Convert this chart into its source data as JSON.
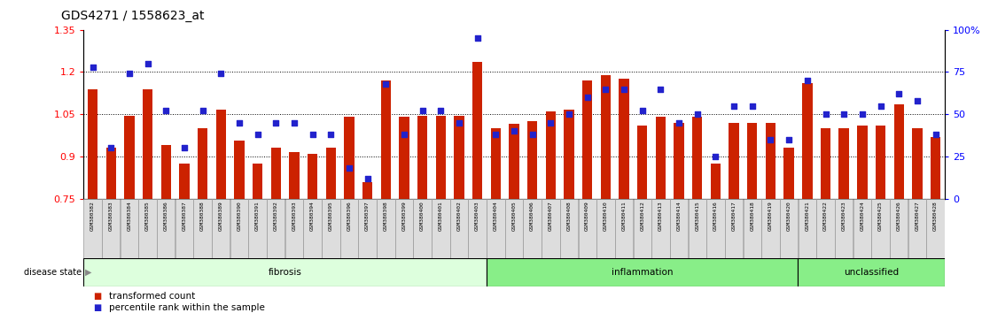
{
  "title": "GDS4271 / 1558623_at",
  "samples": [
    "GSM380382",
    "GSM380383",
    "GSM380384",
    "GSM380385",
    "GSM380386",
    "GSM380387",
    "GSM380388",
    "GSM380389",
    "GSM380390",
    "GSM380391",
    "GSM380392",
    "GSM380393",
    "GSM380394",
    "GSM380395",
    "GSM380396",
    "GSM380397",
    "GSM380398",
    "GSM380399",
    "GSM380400",
    "GSM380401",
    "GSM380402",
    "GSM380403",
    "GSM380404",
    "GSM380405",
    "GSM380406",
    "GSM380407",
    "GSM380408",
    "GSM380409",
    "GSM380410",
    "GSM380411",
    "GSM380412",
    "GSM380413",
    "GSM380414",
    "GSM380415",
    "GSM380416",
    "GSM380417",
    "GSM380418",
    "GSM380419",
    "GSM380420",
    "GSM380421",
    "GSM380422",
    "GSM380423",
    "GSM380424",
    "GSM380425",
    "GSM380426",
    "GSM380427",
    "GSM380428"
  ],
  "bar_values": [
    1.14,
    0.93,
    1.045,
    1.14,
    0.94,
    0.875,
    1.0,
    1.065,
    0.955,
    0.875,
    0.93,
    0.915,
    0.91,
    0.93,
    1.04,
    0.81,
    1.17,
    1.04,
    1.045,
    1.045,
    1.045,
    1.235,
    1.0,
    1.015,
    1.025,
    1.06,
    1.065,
    1.17,
    1.19,
    1.175,
    1.01,
    1.04,
    1.02,
    1.04,
    0.875,
    1.02,
    1.02,
    1.02,
    0.93,
    1.16,
    1.0,
    1.0,
    1.01,
    1.01,
    1.085,
    1.0,
    0.97
  ],
  "dot_pct": [
    78,
    30,
    74,
    80,
    52,
    30,
    52,
    74,
    45,
    38,
    45,
    45,
    38,
    38,
    18,
    12,
    68,
    38,
    52,
    52,
    45,
    95,
    38,
    40,
    38,
    45,
    50,
    60,
    65,
    65,
    52,
    65,
    45,
    50,
    25,
    55,
    55,
    35,
    35,
    70,
    50,
    50,
    50,
    55,
    62,
    58,
    38
  ],
  "bar_color": "#cc2200",
  "dot_color": "#2222cc",
  "ylim_left": [
    0.75,
    1.35
  ],
  "ylim_right": [
    0,
    100
  ],
  "yticks_left": [
    0.75,
    0.9,
    1.05,
    1.2,
    1.35
  ],
  "ytick_labels_left": [
    "0.75",
    "0.9",
    "1.05",
    "1.2",
    "1.35"
  ],
  "yticks_right_pct": [
    0,
    25,
    50,
    75,
    100
  ],
  "ytick_labels_right": [
    "0",
    "25",
    "50",
    "75",
    "100%"
  ],
  "hlines": [
    0.9,
    1.05,
    1.2
  ],
  "baseline": 0.75,
  "groups": [
    {
      "label": "fibrosis",
      "start": 0,
      "end": 21,
      "color": "#ddffdd"
    },
    {
      "label": "inflammation",
      "start": 22,
      "end": 38,
      "color": "#88ee88"
    },
    {
      "label": "unclassified",
      "start": 39,
      "end": 46,
      "color": "#88ee88"
    }
  ],
  "label_bg": "#dddddd",
  "label_edge": "#999999",
  "disease_label": "disease state",
  "legend_bar": "transformed count",
  "legend_dot": "percentile rank within the sample"
}
